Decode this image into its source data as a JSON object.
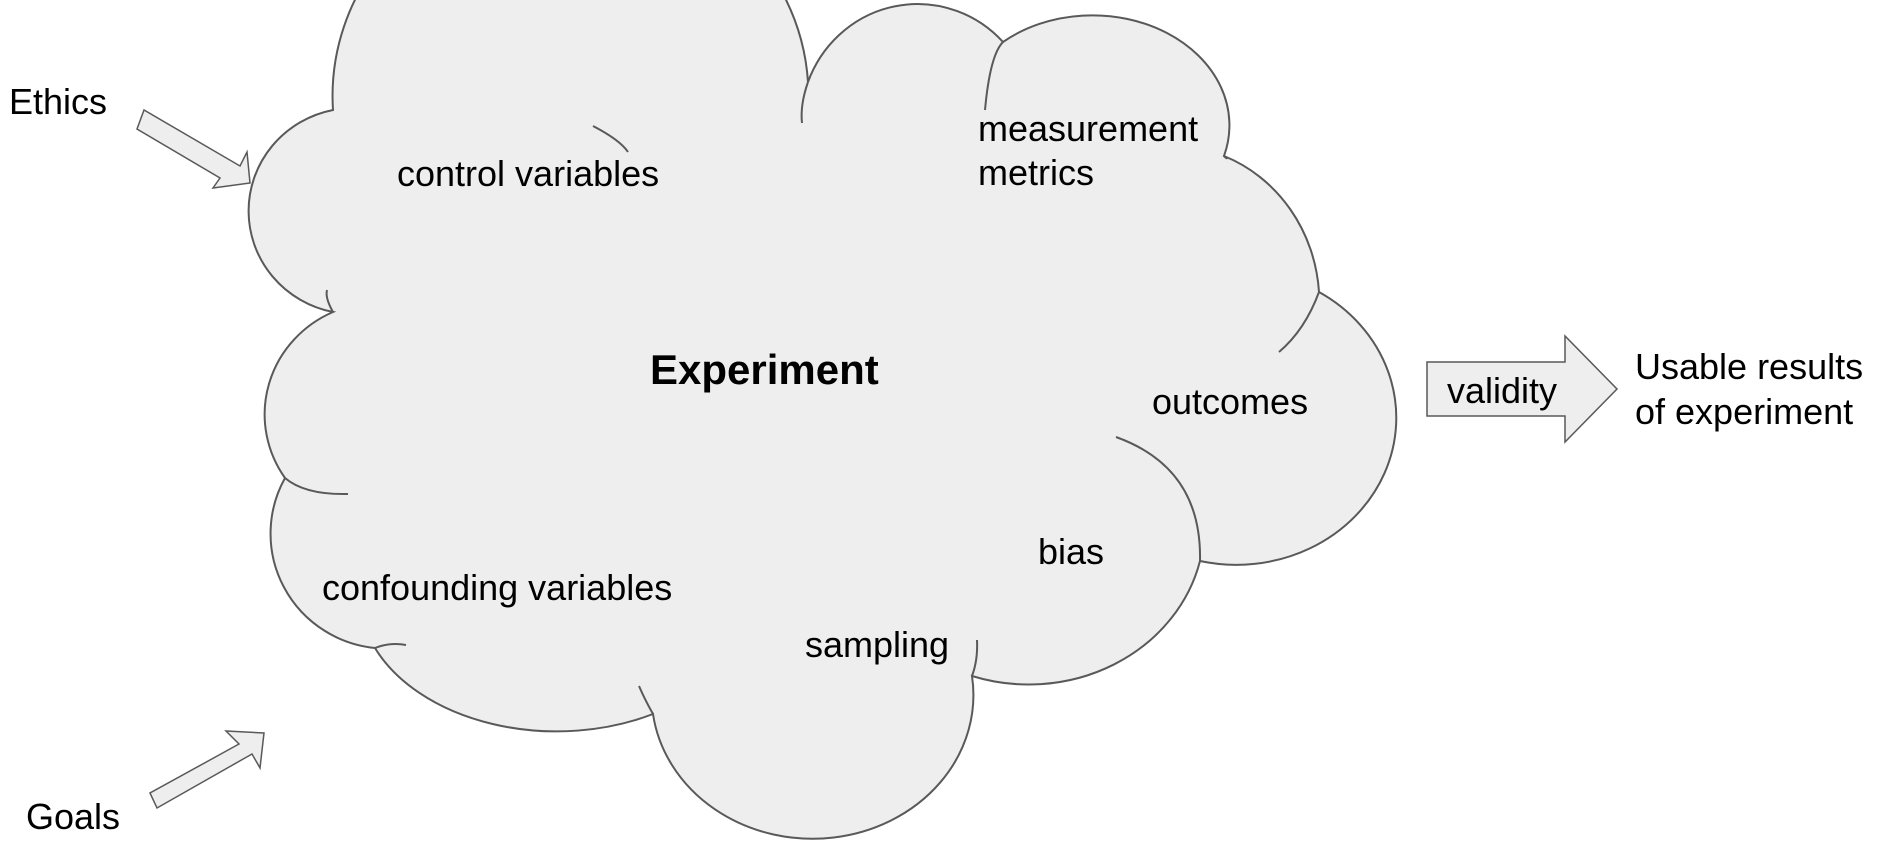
{
  "center_label": "Experiment",
  "cloud_labels": {
    "control_variables": "control variables",
    "measurement_line1": "measurement",
    "measurement_line2": "metrics",
    "outcomes": "outcomes",
    "bias": "bias",
    "sampling": "sampling",
    "confounding_variables": "confounding variables"
  },
  "inputs": {
    "ethics": "Ethics",
    "goals": "Goals"
  },
  "output": {
    "arrow_label": "validity",
    "result_line1": "Usable results",
    "result_line2": "of experiment"
  },
  "colors": {
    "cloud_fill": "#eeeeee",
    "stroke": "#595959",
    "arrow_fill": "#eeeeee"
  }
}
